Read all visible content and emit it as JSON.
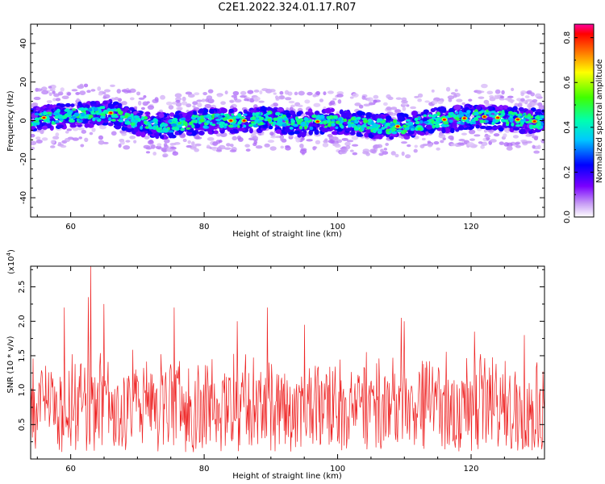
{
  "title": "C2E1.2022.324.01.17.R07",
  "colors": {
    "snr_line": "#ee2222",
    "axis": "#000000",
    "background": "#ffffff"
  },
  "colorbar": {
    "label": "Normalized spectral amplitude",
    "ticks": [
      "0.0",
      "0.2",
      "0.4",
      "0.6",
      "0.8"
    ],
    "tick_values": [
      0.0,
      0.2,
      0.4,
      0.6,
      0.8
    ],
    "range": [
      0.0,
      0.86
    ],
    "colormap": "rainbow (white-purple-blue-cyan-green-yellow-orange-red-magenta)"
  },
  "chart_data": [
    {
      "type": "heatmap",
      "name": "spectrogram",
      "xlabel": "Height of straight line (km)",
      "ylabel": "Frequency (Hz)",
      "xlim": [
        54,
        131
      ],
      "ylim": [
        -50,
        50
      ],
      "x_ticks": [
        "60",
        "80",
        "100",
        "120"
      ],
      "x_tick_values": [
        60,
        80,
        100,
        120
      ],
      "y_ticks": [
        "40",
        "20",
        "0",
        "-20",
        "-40"
      ],
      "y_tick_values": [
        40,
        20,
        0,
        -20,
        -40
      ],
      "ridge": {
        "x": [
          54,
          58,
          62,
          66,
          70,
          74,
          78,
          82,
          86,
          90,
          94,
          98,
          102,
          106,
          110,
          114,
          118,
          122,
          126,
          131
        ],
        "y": [
          1,
          2,
          3,
          4,
          -1,
          -3,
          -1,
          0,
          0,
          1,
          -2,
          0,
          -1,
          -3,
          -3,
          0,
          1,
          2,
          1,
          -1
        ]
      },
      "ridge_halfwidth_hz": 6
    },
    {
      "type": "line",
      "name": "snr",
      "xlabel": "Height of straight line (km)",
      "ylabel": "SNR (10 * v/v)",
      "y_multiplier": "(x10",
      "y_multiplier_exp": "4",
      "y_multiplier_close": ")",
      "xlim": [
        54,
        131
      ],
      "ylim": [
        0.0,
        2.8
      ],
      "x_ticks": [
        "60",
        "80",
        "100",
        "120"
      ],
      "x_tick_values": [
        60,
        80,
        100,
        120
      ],
      "y_ticks": [
        "0.5",
        "1.0",
        "1.5",
        "2.0",
        "2.5"
      ],
      "y_tick_values": [
        0.5,
        1.0,
        1.5,
        2.0,
        2.5
      ],
      "peaks": [
        {
          "x": 63.0,
          "y": 2.8
        },
        {
          "x": 62.6,
          "y": 2.35
        },
        {
          "x": 59.0,
          "y": 2.2
        },
        {
          "x": 65.0,
          "y": 2.25
        },
        {
          "x": 75.5,
          "y": 2.2
        },
        {
          "x": 89.5,
          "y": 2.2
        },
        {
          "x": 109.5,
          "y": 2.05
        },
        {
          "x": 110.0,
          "y": 2.0
        },
        {
          "x": 85.0,
          "y": 2.0
        },
        {
          "x": 95.0,
          "y": 1.95
        },
        {
          "x": 120.5,
          "y": 1.85
        },
        {
          "x": 128.0,
          "y": 1.8
        }
      ],
      "typical_range": [
        0.1,
        1.6
      ],
      "mean": 0.85
    }
  ]
}
